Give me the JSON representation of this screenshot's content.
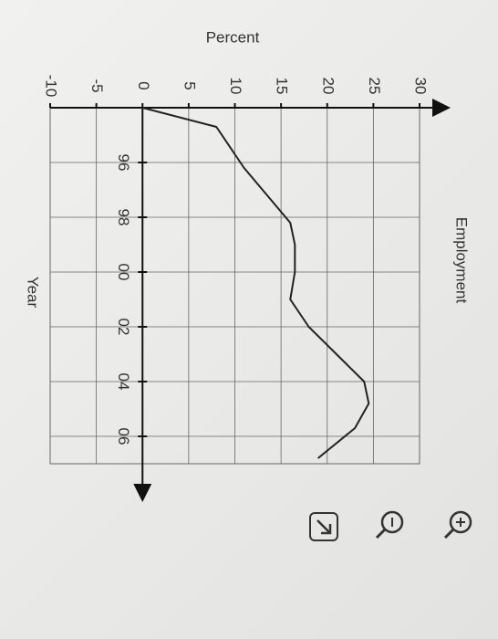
{
  "chart_data": {
    "type": "line",
    "title": "Employment",
    "x_label": "Year",
    "y_label": "Percent",
    "x": [
      1994,
      1994.7,
      1995.7,
      1996.2,
      1997,
      1998.2,
      1999,
      2000,
      2001,
      2002,
      2003,
      2004,
      2004.8,
      2005.7,
      2006.8
    ],
    "series": [
      {
        "name": "Employment",
        "color": "#222222",
        "values": [
          0,
          8,
          10,
          11,
          13,
          16,
          16.5,
          16.5,
          16,
          18,
          21,
          24,
          24.5,
          23,
          19
        ]
      }
    ],
    "xlim": [
      1994,
      2007
    ],
    "xticks": [
      {
        "value": 1996,
        "label": "96"
      },
      {
        "value": 1998,
        "label": "98"
      },
      {
        "value": 2000,
        "label": "00"
      },
      {
        "value": 2002,
        "label": "02"
      },
      {
        "value": 2004,
        "label": "04"
      },
      {
        "value": 2006,
        "label": "06"
      }
    ],
    "ylim": [
      -10,
      30
    ],
    "yticks": [
      -10,
      -5,
      0,
      5,
      10,
      15,
      20,
      25,
      30
    ],
    "grid": true
  }
}
